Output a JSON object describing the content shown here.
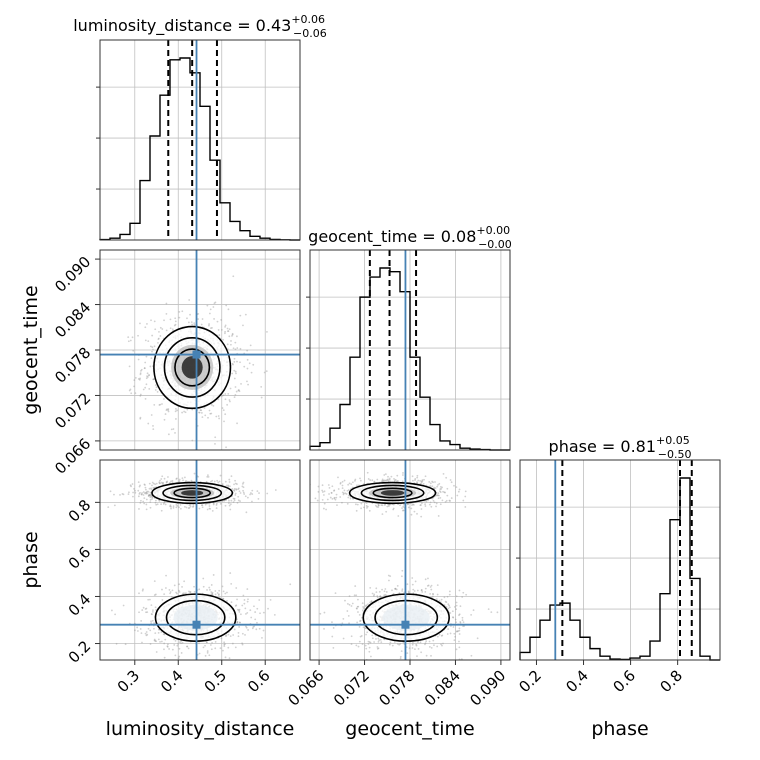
{
  "colors": {
    "truth": "#4682b4",
    "hist": "#000000",
    "grid": "#c0c0c0",
    "points": "#9a9a9a"
  },
  "chart_data": {
    "type": "corner",
    "parameters": [
      "luminosity_distance",
      "geocent_time",
      "phase"
    ],
    "titles": [
      {
        "param": "luminosity_distance",
        "text": "luminosity_distance = 0.43",
        "sup": "+0.06",
        "sub": "−0.06"
      },
      {
        "param": "geocent_time",
        "text": "geocent_time = 0.08",
        "sup": "+0.00",
        "sub": "−0.00"
      },
      {
        "param": "phase",
        "text": "phase = 0.81",
        "sup": "+0.05",
        "sub": "−0.50"
      }
    ],
    "axis_labels": {
      "x": [
        "luminosity_distance",
        "geocent_time",
        "phase"
      ],
      "y": [
        "geocent_time",
        "phase"
      ]
    },
    "ranges": {
      "luminosity_distance": [
        0.22,
        0.68
      ],
      "geocent_time": [
        0.0648,
        0.0912
      ],
      "phase": [
        0.13,
        0.98
      ]
    },
    "ticks": {
      "luminosity_distance": [
        "0.3",
        "0.4",
        "0.5",
        "0.6"
      ],
      "geocent_time": [
        "0.066",
        "0.072",
        "0.078",
        "0.084",
        "0.090"
      ],
      "phase": [
        "0.2",
        "0.4",
        "0.6",
        "0.8"
      ]
    },
    "truths": {
      "luminosity_distance": 0.442,
      "geocent_time": 0.0774,
      "phase": 0.28
    },
    "quantiles": {
      "luminosity_distance": [
        0.377,
        0.432,
        0.489
      ],
      "geocent_time": [
        0.0727,
        0.0753,
        0.0788
      ],
      "phase": [
        0.31,
        0.81,
        0.86
      ]
    },
    "hist_luminosity_distance": {
      "edges": [
        0.22,
        0.243,
        0.266,
        0.289,
        0.312,
        0.335,
        0.358,
        0.381,
        0.404,
        0.427,
        0.45,
        0.473,
        0.496,
        0.519,
        0.542,
        0.565,
        0.588,
        0.611,
        0.634,
        0.657,
        0.68
      ],
      "counts": [
        0.2,
        1,
        3,
        9,
        32,
        56,
        78,
        97,
        98,
        90,
        72,
        43,
        20,
        10,
        5,
        2,
        1,
        0.3,
        0.1,
        0
      ]
    },
    "hist_geocent_time": {
      "edges": [
        0.0648,
        0.06612,
        0.06744,
        0.06876,
        0.07008,
        0.0714,
        0.07272,
        0.07404,
        0.07536,
        0.07668,
        0.078,
        0.07932,
        0.08064,
        0.08196,
        0.08328,
        0.0846,
        0.08592,
        0.08724,
        0.08856,
        0.08988,
        0.0912
      ],
      "counts": [
        2,
        4,
        12,
        25,
        51,
        84,
        95,
        100,
        98,
        87,
        51,
        29,
        14,
        5,
        3,
        1,
        0.5,
        0.2,
        0,
        0
      ]
    },
    "hist_phase": {
      "edges": [
        0.13,
        0.1725,
        0.215,
        0.2575,
        0.3,
        0.3425,
        0.385,
        0.4275,
        0.47,
        0.5125,
        0.555,
        0.5975,
        0.64,
        0.6825,
        0.725,
        0.7675,
        0.81,
        0.8525,
        0.895,
        0.9375,
        0.98
      ],
      "counts": [
        4,
        12,
        21,
        29,
        30,
        21,
        12,
        6,
        2,
        0.5,
        0.3,
        1,
        2,
        10,
        35,
        74,
        96,
        43,
        2,
        0
      ]
    },
    "panels": [
      {
        "x": "luminosity_distance",
        "y": "geocent_time",
        "kind": "2d-density",
        "peaks": [
          [
            0.432,
            0.0757
          ]
        ]
      },
      {
        "x": "luminosity_distance",
        "y": "phase",
        "kind": "2d-density",
        "peaks": [
          [
            0.432,
            0.84
          ],
          [
            0.44,
            0.31
          ]
        ]
      },
      {
        "x": "geocent_time",
        "y": "phase",
        "kind": "2d-density",
        "peaks": [
          [
            0.0757,
            0.84
          ],
          [
            0.0775,
            0.31
          ]
        ]
      }
    ]
  }
}
